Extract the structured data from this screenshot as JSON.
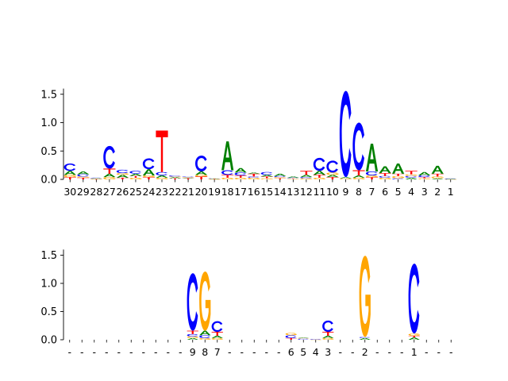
{
  "colors": {
    "A": "#008000",
    "C": "#0000ff",
    "G": "#ffa500",
    "T": "#ff0000",
    "axis": "#000000"
  },
  "chart_data": [
    {
      "type": "sequence-logo",
      "title": "",
      "xlabel": "",
      "ylabel": "",
      "ylim": [
        0,
        1.6
      ],
      "yticks": [
        0.0,
        0.5,
        1.0,
        1.5
      ],
      "ytick_labels": [
        "0.0",
        "0.5",
        "1.0",
        "1.5"
      ],
      "xtick_labels": [
        "30",
        "29",
        "28",
        "27",
        "26",
        "25",
        "24",
        "23",
        "22",
        "21",
        "20",
        "19",
        "18",
        "17",
        "16",
        "15",
        "14",
        "13",
        "12",
        "11",
        "10",
        "9",
        "8",
        "7",
        "6",
        "5",
        "4",
        "3",
        "2",
        "1"
      ],
      "positions": [
        [
          [
            "T",
            0.04
          ],
          [
            "G",
            0.04
          ],
          [
            "A",
            0.07
          ],
          [
            "C",
            0.13
          ]
        ],
        [
          [
            "T",
            0.03
          ],
          [
            "G",
            0.02
          ],
          [
            "C",
            0.04
          ],
          [
            "A",
            0.05
          ]
        ],
        [
          [
            "T",
            0.005
          ],
          [
            "G",
            0.005
          ],
          [
            "A",
            0.01
          ],
          [
            "C",
            0.01
          ]
        ],
        [
          [
            "G",
            0.04
          ],
          [
            "A",
            0.06
          ],
          [
            "T",
            0.09
          ],
          [
            "C",
            0.4
          ]
        ],
        [
          [
            "T",
            0.03
          ],
          [
            "A",
            0.05
          ],
          [
            "G",
            0.03
          ],
          [
            "C",
            0.06
          ]
        ],
        [
          [
            "G",
            0.03
          ],
          [
            "T",
            0.03
          ],
          [
            "A",
            0.04
          ],
          [
            "C",
            0.05
          ]
        ],
        [
          [
            "T",
            0.04
          ],
          [
            "G",
            0.03
          ],
          [
            "A",
            0.11
          ],
          [
            "C",
            0.19
          ]
        ],
        [
          [
            "G",
            0.03
          ],
          [
            "A",
            0.04
          ],
          [
            "C",
            0.06
          ],
          [
            "T",
            0.73
          ]
        ],
        [
          [
            "T",
            0.02
          ],
          [
            "A",
            0.02
          ],
          [
            "G",
            0.01
          ],
          [
            "C",
            0.02
          ]
        ],
        [
          [
            "T",
            0.02
          ],
          [
            "A",
            0.01
          ],
          [
            "G",
            0.01
          ],
          [
            "C",
            0.01
          ]
        ],
        [
          [
            "T",
            0.05
          ],
          [
            "G",
            0.03
          ],
          [
            "A",
            0.06
          ],
          [
            "C",
            0.28
          ]
        ],
        [
          [
            "G",
            0.005
          ],
          [
            "T",
            0.005
          ],
          [
            "A",
            0.005
          ],
          [
            "C",
            0.005
          ]
        ],
        [
          [
            "G",
            0.03
          ],
          [
            "T",
            0.05
          ],
          [
            "C",
            0.08
          ],
          [
            "A",
            0.51
          ]
        ],
        [
          [
            "G",
            0.03
          ],
          [
            "T",
            0.04
          ],
          [
            "C",
            0.05
          ],
          [
            "A",
            0.08
          ]
        ],
        [
          [
            "G",
            0.03
          ],
          [
            "C",
            0.02
          ],
          [
            "T",
            0.05
          ],
          [
            "A",
            0.02
          ]
        ],
        [
          [
            "G",
            0.02
          ],
          [
            "T",
            0.03
          ],
          [
            "A",
            0.03
          ],
          [
            "C",
            0.05
          ]
        ],
        [
          [
            "T",
            0.02
          ],
          [
            "G",
            0.02
          ],
          [
            "C",
            0.02
          ],
          [
            "A",
            0.04
          ]
        ],
        [
          [
            "G",
            0.01
          ],
          [
            "T",
            0.01
          ],
          [
            "C",
            0.01
          ],
          [
            "A",
            0.02
          ]
        ],
        [
          [
            "G",
            0.02
          ],
          [
            "C",
            0.02
          ],
          [
            "A",
            0.04
          ],
          [
            "T",
            0.07
          ]
        ],
        [
          [
            "G",
            0.03
          ],
          [
            "T",
            0.05
          ],
          [
            "A",
            0.07
          ],
          [
            "C",
            0.23
          ]
        ],
        [
          [
            "T",
            0.04
          ],
          [
            "A",
            0.04
          ],
          [
            "G",
            0.04
          ],
          [
            "C",
            0.21
          ]
        ],
        [
          [
            "G",
            0.02
          ],
          [
            "A",
            0.02
          ],
          [
            "C",
            1.52
          ]
        ],
        [
          [
            "G",
            0.03
          ],
          [
            "A",
            0.04
          ],
          [
            "T",
            0.09
          ],
          [
            "C",
            0.84
          ]
        ],
        [
          [
            "T",
            0.04
          ],
          [
            "G",
            0.03
          ],
          [
            "C",
            0.07
          ],
          [
            "A",
            0.49
          ]
        ],
        [
          [
            "G",
            0.03
          ],
          [
            "C",
            0.03
          ],
          [
            "T",
            0.05
          ],
          [
            "A",
            0.12
          ]
        ],
        [
          [
            "C",
            0.02
          ],
          [
            "G",
            0.04
          ],
          [
            "T",
            0.04
          ],
          [
            "A",
            0.18
          ]
        ],
        [
          [
            "A",
            0.03
          ],
          [
            "C",
            0.03
          ],
          [
            "G",
            0.03
          ],
          [
            "T",
            0.06
          ]
        ],
        [
          [
            "G",
            0.02
          ],
          [
            "T",
            0.02
          ],
          [
            "C",
            0.03
          ],
          [
            "A",
            0.06
          ]
        ],
        [
          [
            "A",
            0.02
          ],
          [
            "G",
            0.03
          ],
          [
            "T",
            0.05
          ],
          [
            "A",
            0.14
          ]
        ],
        [
          [
            "G",
            0.005
          ],
          [
            "A",
            0.005
          ],
          [
            "C",
            0.005
          ]
        ]
      ]
    },
    {
      "type": "sequence-logo",
      "title": "",
      "xlabel": "",
      "ylabel": "",
      "ylim": [
        0,
        1.6
      ],
      "yticks": [
        0.0,
        0.5,
        1.0,
        1.5
      ],
      "ytick_labels": [
        "0.0",
        "0.5",
        "1.0",
        "1.5"
      ],
      "xtick_labels": [
        "-",
        "-",
        "-",
        "-",
        "-",
        "-",
        "-",
        "-",
        "-",
        "-",
        "9",
        "8",
        "7",
        "-",
        "-",
        "-",
        "-",
        "-",
        "6",
        "5",
        "4",
        "3",
        "-",
        "-",
        "2",
        "-",
        "-",
        "-",
        "1",
        "-",
        "-",
        "-"
      ],
      "positions": [
        [],
        [],
        [],
        [],
        [],
        [],
        [],
        [],
        [],
        [],
        [
          [
            "A",
            0.03
          ],
          [
            "G",
            0.03
          ],
          [
            "C",
            0.04
          ],
          [
            "T",
            0.06
          ],
          [
            "C",
            1.02
          ]
        ],
        [
          [
            "G",
            0.03
          ],
          [
            "C",
            0.05
          ],
          [
            "A",
            0.08
          ],
          [
            "G",
            1.05
          ]
        ],
        [
          [
            "G",
            0.03
          ],
          [
            "A",
            0.04
          ],
          [
            "T",
            0.07
          ],
          [
            "C",
            0.19
          ]
        ],
        [],
        [],
        [],
        [],
        [],
        [
          [
            "T",
            0.03
          ],
          [
            "C",
            0.05
          ],
          [
            "G",
            0.04
          ]
        ],
        [
          [
            "C",
            0.02
          ],
          [
            "G",
            0.01
          ],
          [
            "A",
            0.01
          ]
        ],
        [
          [
            "G",
            0.005
          ],
          [
            "C",
            0.005
          ]
        ],
        [
          [
            "G",
            0.03
          ],
          [
            "A",
            0.04
          ],
          [
            "T",
            0.07
          ],
          [
            "C",
            0.2
          ]
        ],
        [],
        [],
        [
          [
            "A",
            0.03
          ],
          [
            "C",
            0.02
          ],
          [
            "G",
            1.44
          ]
        ],
        [],
        [],
        [],
        [
          [
            "A",
            0.04
          ],
          [
            "T",
            0.03
          ],
          [
            "G",
            0.04
          ],
          [
            "C",
            1.24
          ]
        ],
        [],
        [],
        []
      ]
    }
  ]
}
